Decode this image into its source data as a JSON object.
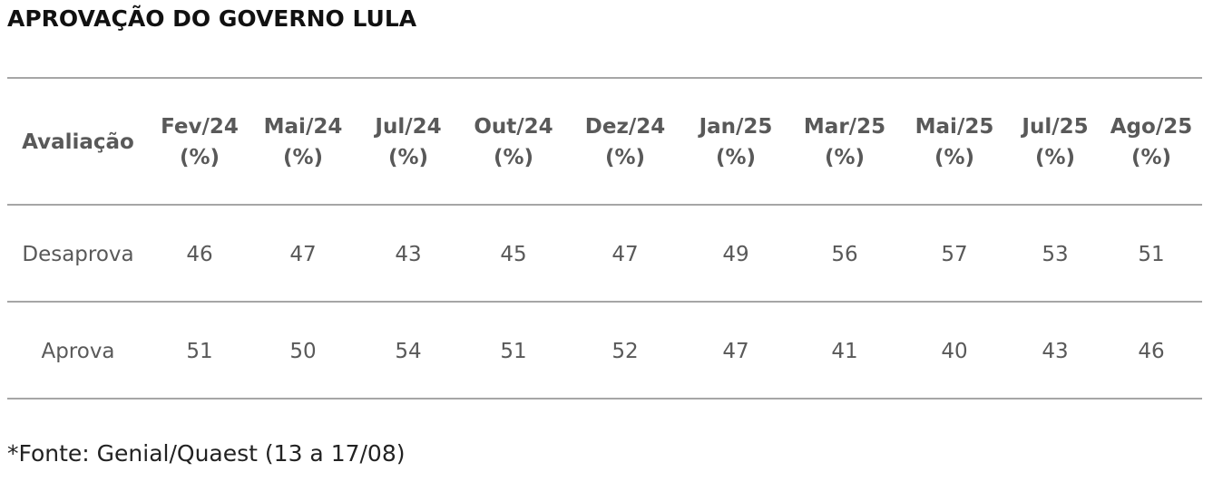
{
  "title": "APROVAÇÃO DO GOVERNO LULA",
  "table": {
    "corner": "Avaliação",
    "columns": [
      {
        "label": "Fev/24",
        "unit": "(%)"
      },
      {
        "label": "Mai/24",
        "unit": "(%)"
      },
      {
        "label": "Jul/24",
        "unit": "(%)"
      },
      {
        "label": "Out/24",
        "unit": "(%)"
      },
      {
        "label": "Dez/24",
        "unit": "(%)"
      },
      {
        "label": "Jan/25",
        "unit": "(%)"
      },
      {
        "label": "Mar/25",
        "unit": "(%)"
      },
      {
        "label": "Mai/25",
        "unit": "(%)"
      },
      {
        "label": "Jul/25",
        "unit": "(%)"
      },
      {
        "label": "Ago/25",
        "unit": "(%)"
      }
    ],
    "rows": [
      {
        "name": "Desaprova",
        "values": [
          46,
          47,
          43,
          45,
          47,
          49,
          56,
          57,
          53,
          51
        ]
      },
      {
        "name": "Aprova",
        "values": [
          51,
          50,
          54,
          51,
          52,
          47,
          41,
          40,
          43,
          46
        ]
      }
    ]
  },
  "footnote": "*Fonte: Genial/Quaest (13 a 17/08)"
}
